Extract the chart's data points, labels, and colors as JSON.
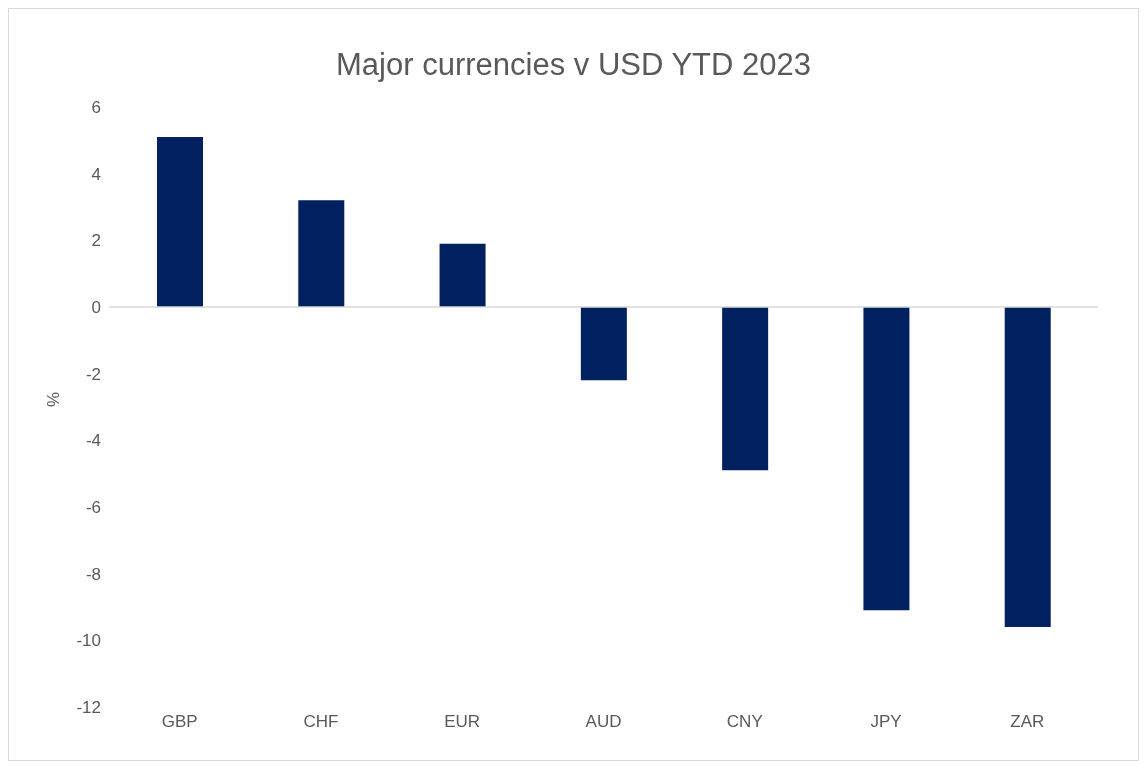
{
  "chart_data": {
    "type": "bar",
    "title": "Major currencies v USD YTD 2023",
    "ylabel": "%",
    "categories": [
      "GBP",
      "CHF",
      "EUR",
      "AUD",
      "CNY",
      "JPY",
      "ZAR"
    ],
    "values": [
      5.1,
      3.2,
      1.9,
      -2.2,
      -4.9,
      -9.1,
      -9.6
    ],
    "color": "#002060",
    "ylim": [
      -12,
      6
    ],
    "yticks": [
      -12,
      -10,
      -8,
      -6,
      -4,
      -2,
      0,
      2,
      4,
      6
    ],
    "legend": false
  }
}
